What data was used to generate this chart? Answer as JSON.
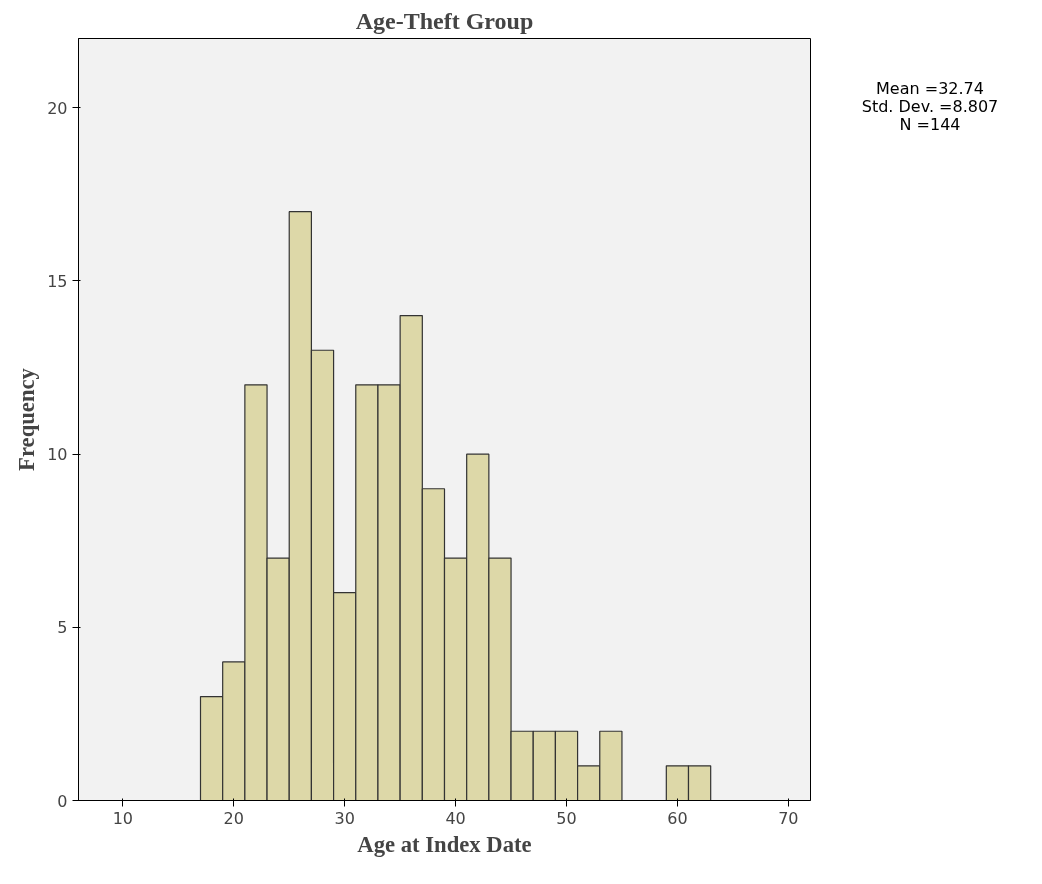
{
  "chart_data": {
    "type": "histogram",
    "title": "Age-Theft Group",
    "xlabel": "Age at Index Date",
    "ylabel": "Frequency",
    "bins": [
      17,
      19,
      21,
      23,
      25,
      27,
      29,
      31,
      33,
      35,
      37,
      39,
      41,
      43,
      45,
      47,
      49,
      51,
      53,
      55,
      57,
      59,
      61,
      63
    ],
    "values": [
      3,
      4,
      12,
      7,
      17,
      13,
      6,
      12,
      12,
      14,
      9,
      7,
      10,
      7,
      2,
      2,
      2,
      1,
      2,
      0,
      0,
      1,
      1
    ],
    "color": "#ddd8a8",
    "xlim": [
      6,
      72
    ],
    "xticks": [
      10,
      20,
      30,
      40,
      50,
      60,
      70
    ],
    "ylim": [
      0,
      22
    ],
    "yticks": [
      0,
      5,
      10,
      15,
      20
    ],
    "grid": false,
    "annotations": [
      "Mean =32.74",
      "Std. Dev. =8.807",
      "N =144"
    ]
  }
}
